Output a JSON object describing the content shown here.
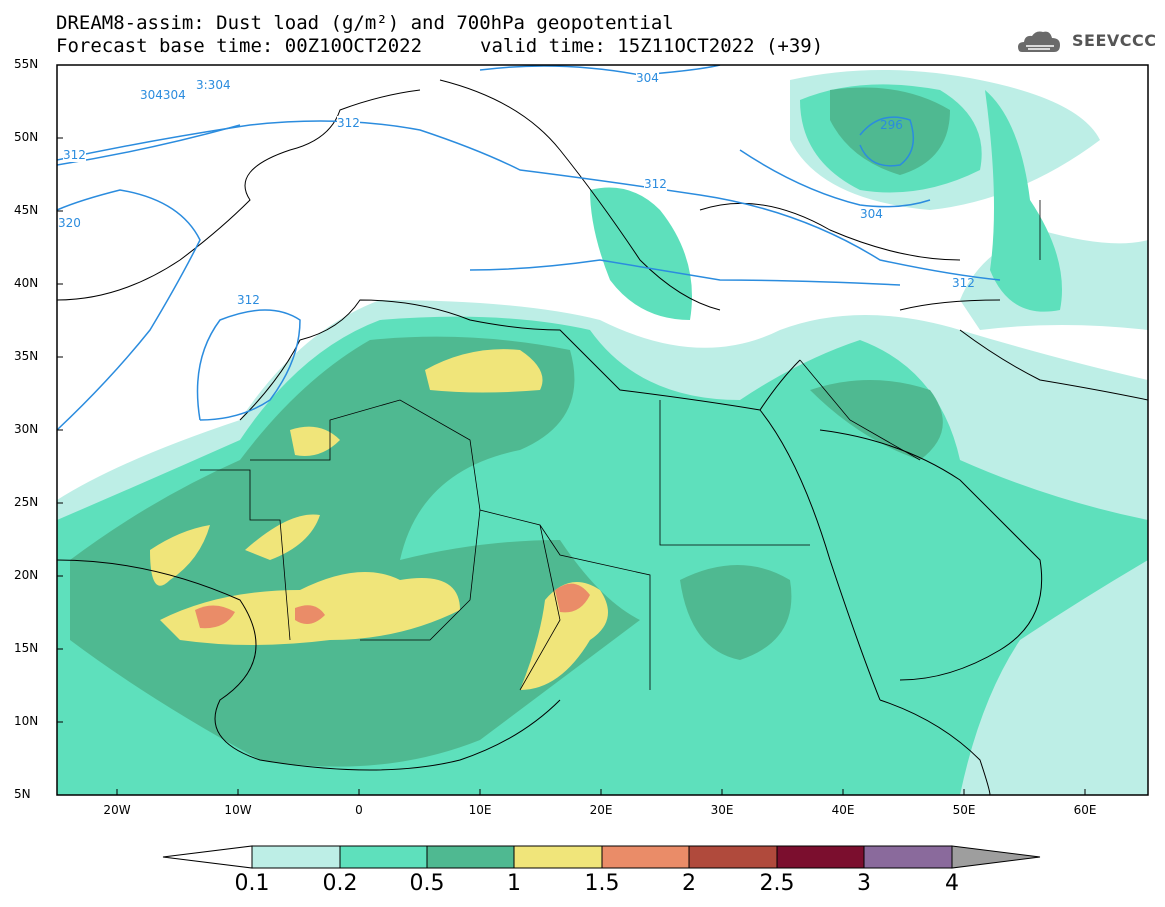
{
  "header": {
    "title_line1": "DREAM8-assim: Dust load (g/m²) and 700hPa geopotential",
    "title_line2_left": "Forecast base time: 00Z10OCT2022",
    "title_line2_right": "valid time: 15Z11OCT2022 (+39)",
    "logo_text": "SEEVCCC"
  },
  "map": {
    "lon_range": [
      -25,
      65
    ],
    "lat_range": [
      5,
      55
    ],
    "lat_labels": [
      "55N",
      "50N",
      "45N",
      "40N",
      "35N",
      "30N",
      "25N",
      "20N",
      "15N",
      "10N",
      "5N"
    ],
    "lon_labels": [
      "20W",
      "10W",
      "0",
      "10E",
      "20E",
      "30E",
      "40E",
      "50E",
      "60E"
    ],
    "contour_labels": [
      "304304",
      "3:304",
      "312",
      "312",
      "320",
      "312",
      "304",
      "312",
      "296",
      "304",
      "312"
    ]
  },
  "colorbar": {
    "levels": [
      "0.1",
      "0.2",
      "0.5",
      "1",
      "1.5",
      "2",
      "2.5",
      "3",
      "4"
    ],
    "colors": [
      "#ffffff",
      "#bdeee6",
      "#5ee0bc",
      "#4fb991",
      "#f0e57a",
      "#ea8c68",
      "#b04a3c",
      "#7b0e2e",
      "#8a6a9c",
      "#9e9e9e"
    ]
  }
}
